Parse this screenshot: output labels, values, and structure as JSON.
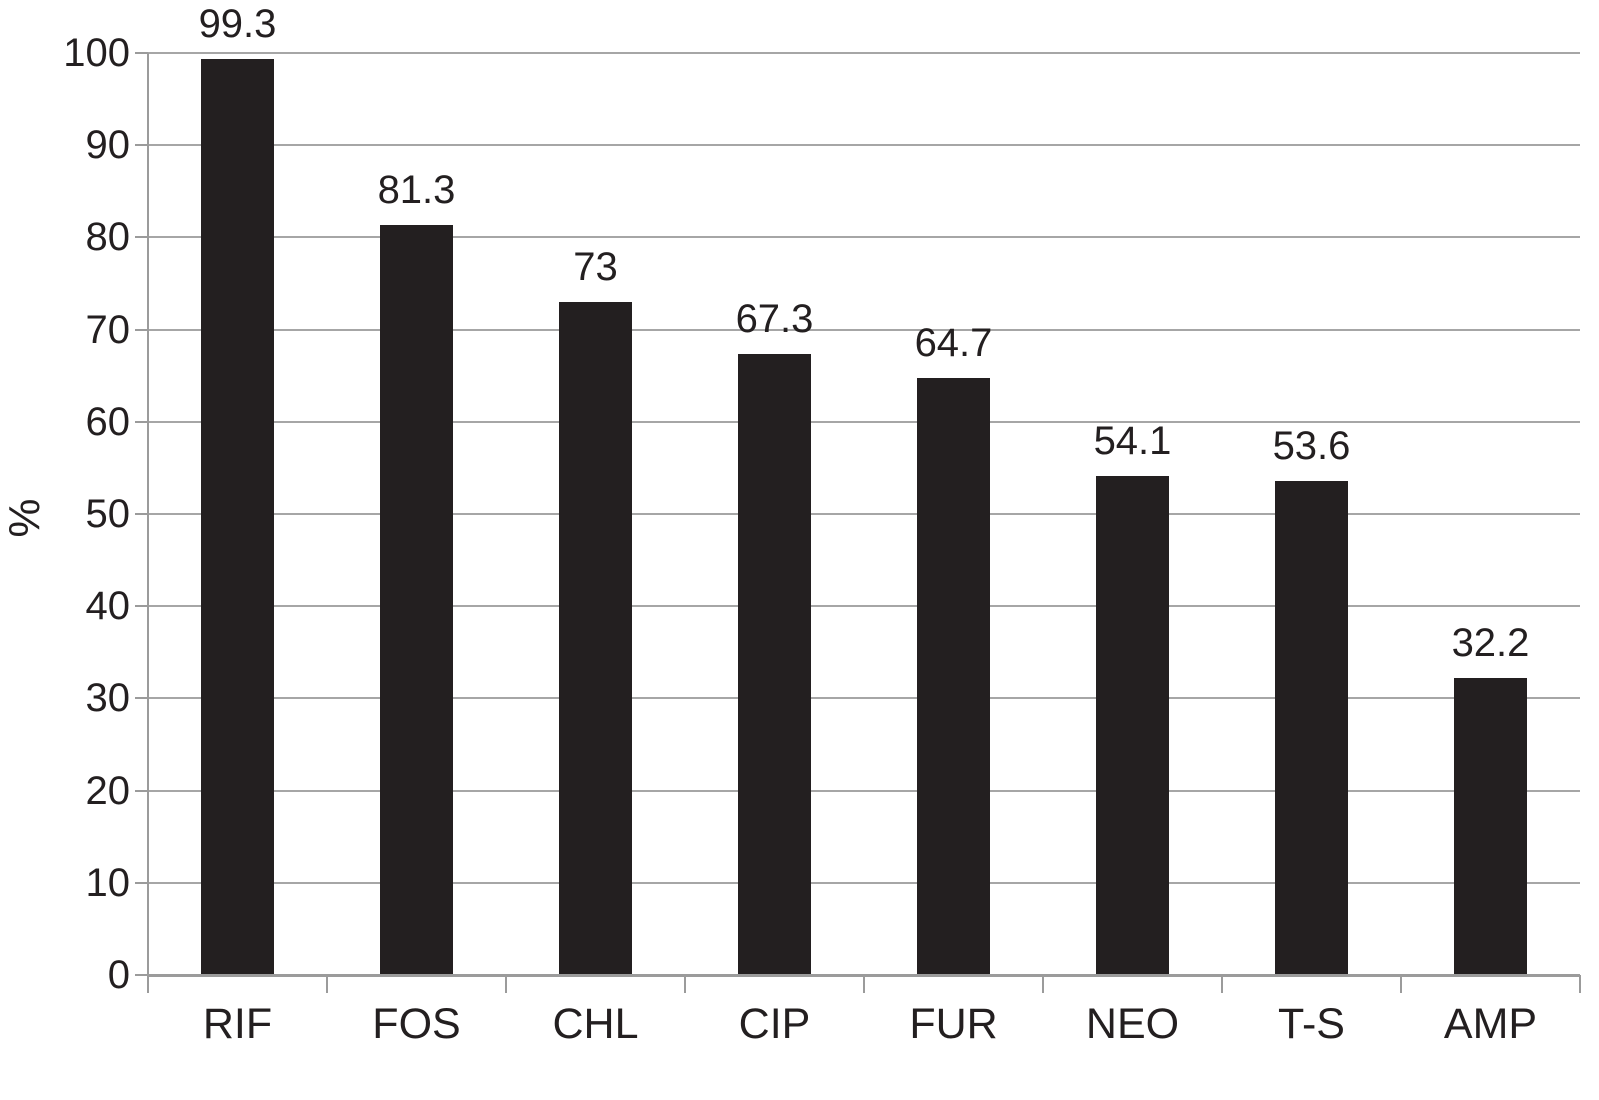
{
  "chart_data": {
    "type": "bar",
    "title": "",
    "ylabel": "%",
    "categories": [
      "RIF",
      "FOS",
      "CHL",
      "CIP",
      "FUR",
      "NEO",
      "T-S",
      "AMP"
    ],
    "values": [
      99.3,
      81.3,
      73,
      67.3,
      64.7,
      54.1,
      53.6,
      32.2
    ],
    "bar_labels": [
      "99.3",
      "81.3",
      "73",
      "67.3",
      "64.7",
      "54.1",
      "53.6",
      "32.2"
    ],
    "ylim": [
      0,
      100
    ],
    "yticks": [
      0,
      10,
      20,
      30,
      40,
      50,
      60,
      70,
      80,
      90,
      100
    ],
    "grid": "horizontal",
    "legend": "none",
    "colors": {
      "bar": "#231f20",
      "gridline": "#a6a6a6",
      "axis": "#9b9b9b",
      "text": "#231f20",
      "background": "#ffffff"
    }
  }
}
